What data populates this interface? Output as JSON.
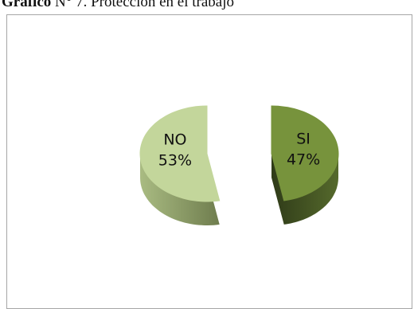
{
  "caption": {
    "prefix": "Gráfico",
    "number": "N° 7.",
    "title": "Protección en el trabajo"
  },
  "chart_data": {
    "type": "pie",
    "title": "Protección en el trabajo",
    "style": "3d-exploded",
    "slices": [
      {
        "label": "SI",
        "value": 47,
        "value_label": "47%",
        "color": "#77933c",
        "side_color": "#4f6228"
      },
      {
        "label": "NO",
        "value": 53,
        "value_label": "53%",
        "color": "#c3d69b",
        "side_color": "#8a9b65"
      }
    ]
  }
}
